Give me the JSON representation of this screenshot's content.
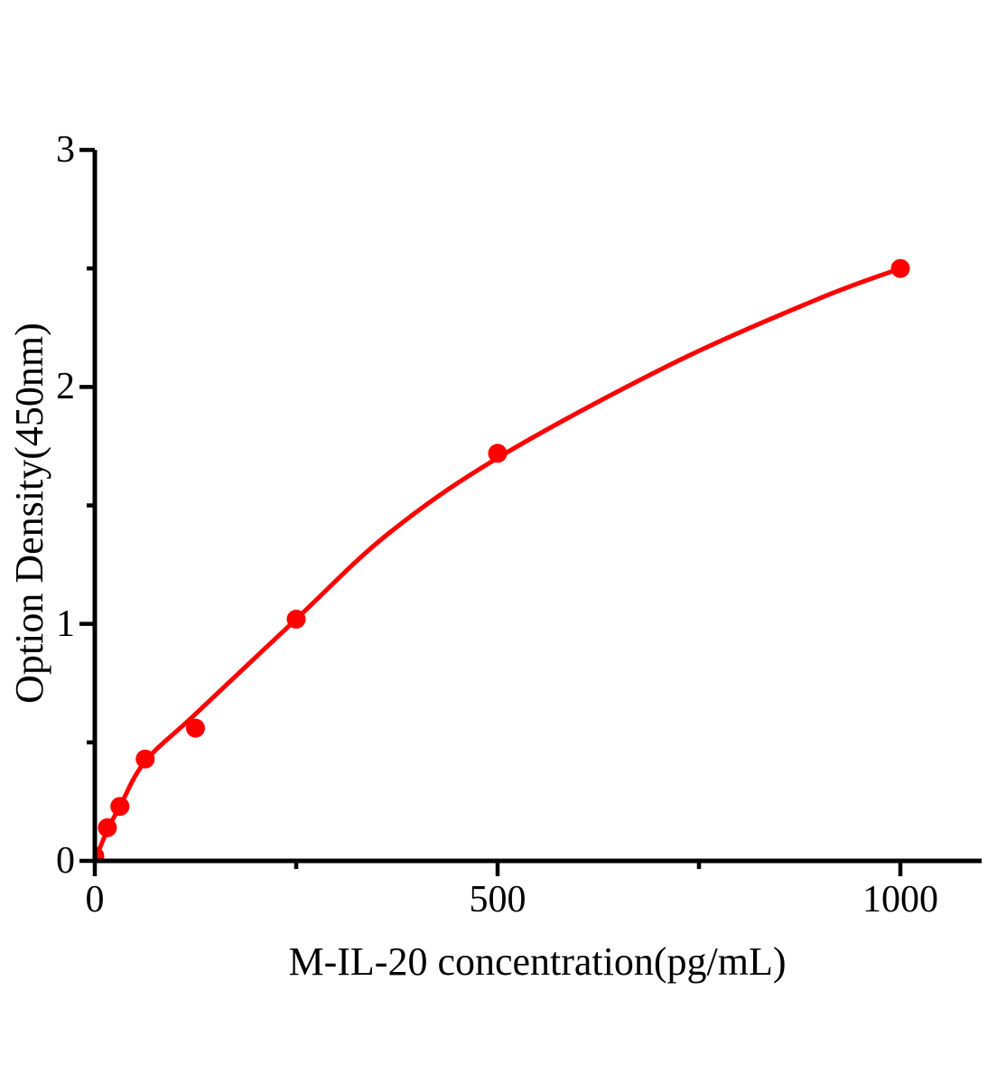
{
  "chart_data": {
    "type": "scatter",
    "title": "",
    "xlabel": "M-IL-20 concentration(pg/mL)",
    "ylabel": "Option Density(450nm)",
    "xlim": [
      0,
      1101
    ],
    "ylim": [
      0,
      3
    ],
    "grid": false,
    "legend_position": "none",
    "x_ticks_major": [
      0,
      500,
      1000
    ],
    "x_ticks_minor": [
      250,
      750
    ],
    "y_ticks_major": [
      0,
      1,
      2,
      3
    ],
    "y_ticks_minor": [
      0.5,
      1.5,
      2.5
    ],
    "colors": {
      "series": "#fe0000",
      "axis": "#000000",
      "background": "#ffffff"
    },
    "series": [
      {
        "name": "standard-points",
        "kind": "scatter",
        "x": [
          0,
          15.6,
          31.2,
          62.5,
          125,
          250,
          500,
          1000
        ],
        "y": [
          0.02,
          0.14,
          0.23,
          0.43,
          0.56,
          1.02,
          1.72,
          2.5
        ]
      },
      {
        "name": "fitted-curve",
        "kind": "line",
        "x": [
          0,
          15.6,
          31.2,
          62.5,
          125,
          250,
          364,
          500,
          712,
          897,
          1000
        ],
        "y": [
          0.0,
          0.13,
          0.23,
          0.42,
          0.62,
          1.02,
          1.38,
          1.7,
          2.09,
          2.37,
          2.5
        ]
      }
    ]
  }
}
